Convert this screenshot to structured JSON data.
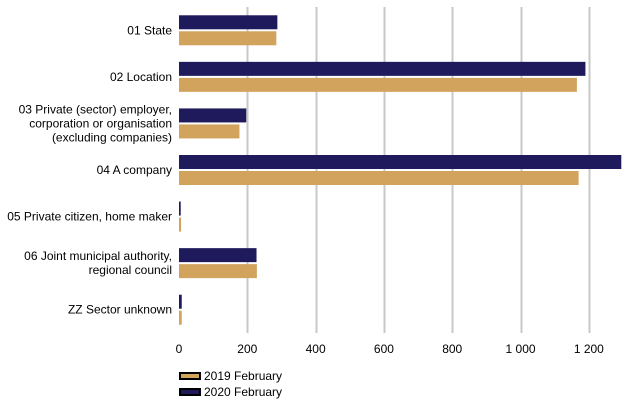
{
  "chart_data": {
    "type": "bar",
    "orientation": "horizontal",
    "title": "",
    "xlabel": "",
    "ylabel": "",
    "categories": [
      [
        "01 State"
      ],
      [
        "02 Location"
      ],
      [
        "03 Private (sector) employer,",
        "corporation or organisation",
        "(excluding companies)"
      ],
      [
        "04 A company"
      ],
      [
        "05 Private citizen, home maker"
      ],
      [
        "06 Joint municipal authority,",
        "regional council"
      ],
      [
        "ZZ Sector unknown"
      ]
    ],
    "series": [
      {
        "name": "2020 February",
        "color": "#1f1a5c",
        "values": [
          288,
          1190,
          197,
          1295,
          5,
          227,
          8
        ]
      },
      {
        "name": "2019 February",
        "color": "#d1a35c",
        "values": [
          285,
          1165,
          177,
          1170,
          6,
          228,
          8
        ]
      }
    ],
    "xlim": [
      0,
      1300
    ],
    "x_ticks": [
      0,
      200,
      400,
      600,
      800,
      1000,
      1200
    ],
    "x_tick_labels": [
      "0",
      "200",
      "400",
      "600",
      "800",
      "1 000",
      "1 200"
    ],
    "grid": true,
    "legend": {
      "placement": "bottom-left",
      "entries": [
        "2019 February",
        "2020 February"
      ]
    }
  }
}
